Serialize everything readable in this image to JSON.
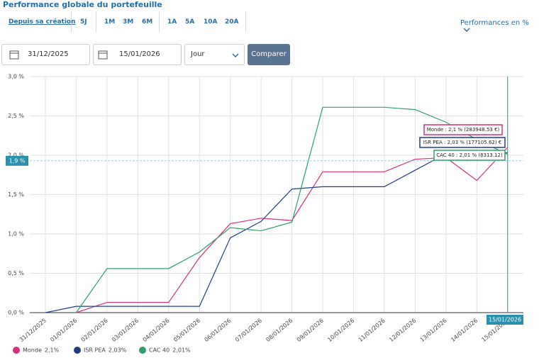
{
  "header": {
    "title": "Performance globale du portefeuille",
    "periods": [
      "Depuis sa création",
      "5J",
      "1M",
      "3M",
      "6M",
      "1A",
      "5A",
      "10A",
      "20A"
    ],
    "mode": "Performances en %"
  },
  "controls": {
    "start_date": "31/12/2025",
    "end_date": "15/01/2026",
    "granularity": "Jour",
    "compare": "Comparer"
  },
  "chart_data": {
    "type": "line",
    "categories": [
      "31/12/2025",
      "01/01/2026",
      "02/01/2026",
      "03/01/2026",
      "04/01/2026",
      "05/01/2026",
      "06/01/2026",
      "07/01/2026",
      "08/01/2026",
      "09/01/2026",
      "10/01/2026",
      "11/01/2026",
      "12/01/2026",
      "13/01/2026",
      "14/01/2026",
      "15/01/2026"
    ],
    "series": [
      {
        "name": "Monde",
        "legend_label": "2,1%",
        "color": "#d6307a",
        "values": [
          null,
          0,
          0.13,
          0.13,
          0.13,
          0.7,
          1.13,
          1.2,
          1.17,
          1.79,
          1.79,
          1.79,
          1.95,
          1.97,
          1.68,
          2.1
        ]
      },
      {
        "name": "ISR PEA",
        "legend_label": "2,03%",
        "color": "#1f3e82",
        "values": [
          0,
          0.08,
          0.08,
          0.08,
          0.08,
          0.08,
          0.95,
          1.16,
          1.57,
          1.6,
          1.6,
          1.6,
          1.81,
          2.02,
          2.04,
          2.03
        ]
      },
      {
        "name": "CAC 40",
        "legend_label": "2,01%",
        "color": "#2e9e6e",
        "values": [
          null,
          0,
          0.56,
          0.56,
          0.56,
          0.77,
          1.08,
          1.04,
          1.15,
          2.61,
          2.61,
          2.61,
          2.58,
          2.42,
          2.2,
          2.01
        ]
      }
    ],
    "ylim": [
      0,
      3
    ],
    "yticks": [
      {
        "value": 0,
        "label": "0,0 %"
      },
      {
        "value": 0.5,
        "label": "0,5 %"
      },
      {
        "value": 1,
        "label": "1,0 %"
      },
      {
        "value": 1.5,
        "label": "1,5 %"
      },
      {
        "value": 2,
        "label": "2,0 %"
      },
      {
        "value": 2.5,
        "label": "2,5 %"
      },
      {
        "value": 3,
        "label": "3,0 %"
      }
    ],
    "grid": true,
    "cursor_y": {
      "value": 1.93,
      "label": "1,9 %"
    },
    "tooltips": [
      "Monde : 2,1 % (283948.53 €)",
      "ISR PEA : 2,03 % (177105.62) €",
      "CAC 40 : 2,01 % (8313.12)"
    ]
  }
}
